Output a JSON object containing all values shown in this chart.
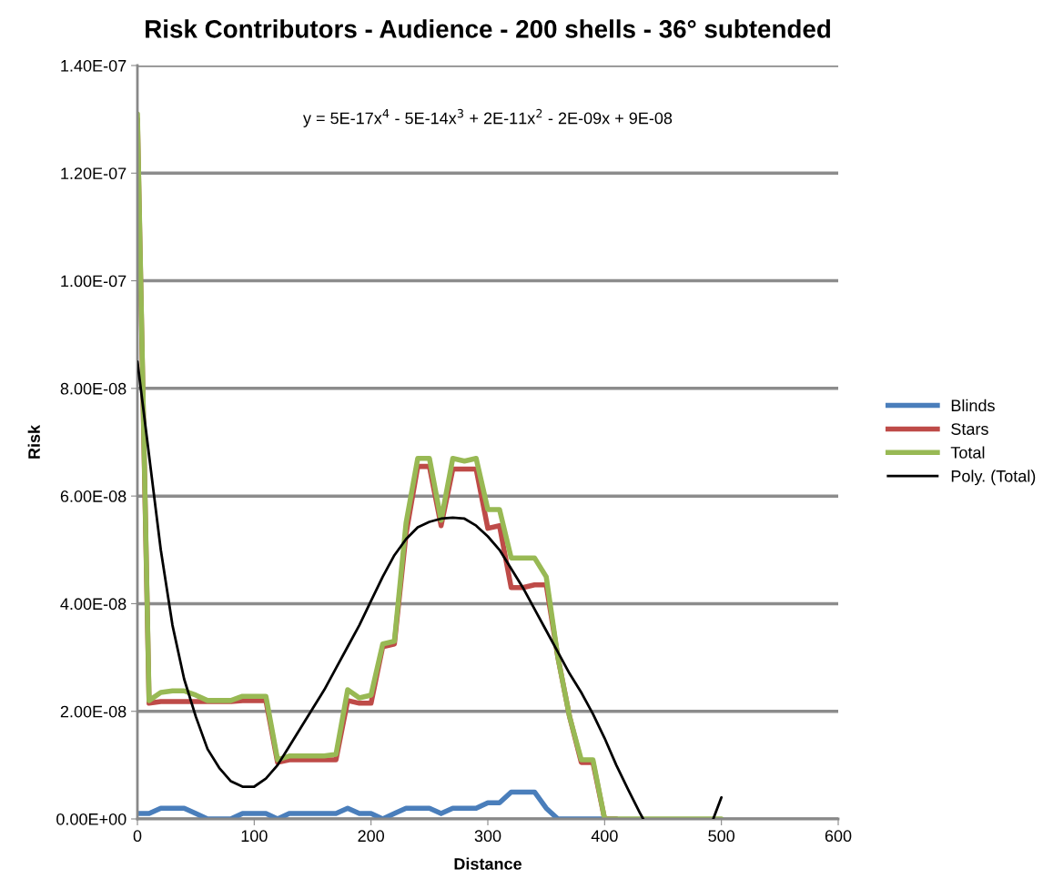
{
  "chart_data": {
    "type": "line",
    "title": "Risk Contributors - Audience - 200 shells - 36° subtended",
    "xlabel": "Distance",
    "ylabel": "Risk",
    "x": [
      0,
      10,
      20,
      30,
      40,
      50,
      60,
      70,
      80,
      90,
      100,
      110,
      120,
      130,
      140,
      150,
      160,
      170,
      180,
      190,
      200,
      210,
      220,
      230,
      240,
      250,
      260,
      270,
      280,
      290,
      300,
      310,
      320,
      330,
      340,
      350,
      360,
      370,
      380,
      390,
      400,
      410,
      420,
      430,
      440,
      450,
      460,
      470,
      480,
      490,
      500
    ],
    "series": [
      {
        "name": "Blinds",
        "color": "#4a7ebb",
        "values": [
          1e-09,
          1e-09,
          2e-09,
          2e-09,
          2e-09,
          1e-09,
          0,
          0,
          0,
          1e-09,
          1e-09,
          1e-09,
          0,
          1e-09,
          1e-09,
          1e-09,
          1e-09,
          1e-09,
          2e-09,
          1e-09,
          1e-09,
          0,
          1e-09,
          2e-09,
          2e-09,
          2e-09,
          1e-09,
          2e-09,
          2e-09,
          2e-09,
          3e-09,
          3e-09,
          5e-09,
          5e-09,
          5e-09,
          2e-09,
          0,
          0,
          0,
          0,
          0,
          0,
          null,
          null,
          null,
          null,
          null,
          null,
          null,
          null,
          null
        ]
      },
      {
        "name": "Stars",
        "color": "#be4b48",
        "values": [
          1.3e-07,
          2.15e-08,
          2.18e-08,
          2.18e-08,
          2.18e-08,
          2.18e-08,
          2.18e-08,
          2.18e-08,
          2.18e-08,
          2.2e-08,
          2.2e-08,
          2.2e-08,
          1.05e-08,
          1.1e-08,
          1.1e-08,
          1.1e-08,
          1.1e-08,
          1.1e-08,
          2.2e-08,
          2.15e-08,
          2.15e-08,
          3.2e-08,
          3.25e-08,
          5.3e-08,
          6.55e-08,
          6.55e-08,
          5.45e-08,
          6.5e-08,
          6.5e-08,
          6.5e-08,
          5.4e-08,
          5.45e-08,
          4.3e-08,
          4.3e-08,
          4.35e-08,
          4.35e-08,
          3e-08,
          1.9e-08,
          1.05e-08,
          1.05e-08,
          0,
          0,
          null,
          null,
          null,
          null,
          null,
          null,
          null,
          null,
          null
        ]
      },
      {
        "name": "Total",
        "color": "#98b954",
        "values": [
          1.31e-07,
          2.2e-08,
          2.35e-08,
          2.38e-08,
          2.38e-08,
          2.3e-08,
          2.2e-08,
          2.2e-08,
          2.2e-08,
          2.28e-08,
          2.28e-08,
          2.28e-08,
          1.1e-08,
          1.17e-08,
          1.17e-08,
          1.17e-08,
          1.17e-08,
          1.2e-08,
          2.4e-08,
          2.25e-08,
          2.3e-08,
          3.25e-08,
          3.3e-08,
          5.5e-08,
          6.7e-08,
          6.7e-08,
          5.55e-08,
          6.7e-08,
          6.65e-08,
          6.7e-08,
          5.75e-08,
          5.75e-08,
          4.85e-08,
          4.85e-08,
          4.85e-08,
          4.5e-08,
          3e-08,
          1.9e-08,
          1.1e-08,
          1.1e-08,
          0,
          0,
          0,
          0,
          0,
          0,
          0,
          0,
          0,
          0,
          0
        ]
      },
      {
        "name": "Poly. (Total)",
        "color": "#000000",
        "x": [
          0,
          10,
          20,
          30,
          40,
          50,
          60,
          70,
          80,
          90,
          100,
          110,
          120,
          130,
          140,
          150,
          160,
          170,
          180,
          190,
          200,
          210,
          220,
          230,
          240,
          250,
          260,
          270,
          280,
          290,
          300,
          310,
          320,
          330,
          340,
          350,
          360,
          370,
          380,
          390,
          400,
          410,
          420,
          430,
          433,
          460,
          493,
          500
        ],
        "values": [
          8.5e-08,
          6.75e-08,
          5e-08,
          3.6e-08,
          2.6e-08,
          1.9e-08,
          1.3e-08,
          9.5e-09,
          7e-09,
          6e-09,
          6e-09,
          7.5e-09,
          1e-08,
          1.35e-08,
          1.7e-08,
          2.05e-08,
          2.4e-08,
          2.8e-08,
          3.2e-08,
          3.6e-08,
          4.05e-08,
          4.5e-08,
          4.9e-08,
          5.2e-08,
          5.42e-08,
          5.52e-08,
          5.58e-08,
          5.6e-08,
          5.58e-08,
          5.45e-08,
          5.25e-08,
          5e-08,
          4.65e-08,
          4.3e-08,
          3.9e-08,
          3.5e-08,
          3.1e-08,
          2.7e-08,
          2.35e-08,
          1.95e-08,
          1.5e-08,
          1e-08,
          5.5e-09,
          1.2e-09,
          0,
          null,
          0,
          4e-09
        ]
      }
    ],
    "xlim": [
      0,
      600
    ],
    "xticks": [
      0,
      100,
      200,
      300,
      400,
      500,
      600
    ],
    "ylim": [
      0,
      1.4e-07
    ],
    "yticks": [
      {
        "value": 0,
        "label": "0.00E+00"
      },
      {
        "value": 2e-08,
        "label": "2.00E-08"
      },
      {
        "value": 4e-08,
        "label": "4.00E-08"
      },
      {
        "value": 6e-08,
        "label": "6.00E-08"
      },
      {
        "value": 8e-08,
        "label": "8.00E-08"
      },
      {
        "value": 1e-07,
        "label": "1.00E-07"
      },
      {
        "value": 1.2e-07,
        "label": "1.20E-07"
      },
      {
        "value": 1.4e-07,
        "label": "1.40E-07"
      }
    ],
    "annotations": [
      "y = 5E-17x$^{4}$ - 5E-14x$^{3}$ + 2E-11x$^{2}$ - 2E-09x + 9E-08"
    ],
    "grid": "y",
    "legend": "right",
    "marker": "none",
    "line_style": "solid"
  }
}
